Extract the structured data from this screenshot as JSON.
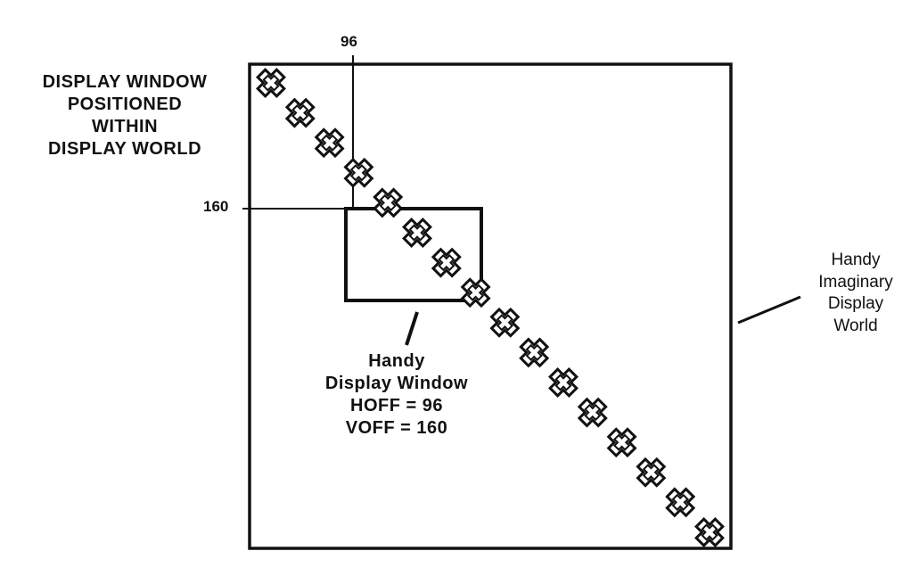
{
  "labels": {
    "hoff_tick": "96",
    "voff_tick": "160",
    "world_caption_lines": [
      "DISPLAY WINDOW",
      "POSITIONED",
      "WITHIN",
      "DISPLAY WORLD"
    ],
    "imaginary_world_lines": [
      "Handy",
      "Imaginary",
      "Display",
      "World"
    ],
    "display_window_lines": [
      "Handy",
      "Display Window",
      "HOFF = 96",
      "VOFF = 160"
    ]
  },
  "sprites": {
    "count": 16,
    "shape": "cross-outline-icon"
  }
}
